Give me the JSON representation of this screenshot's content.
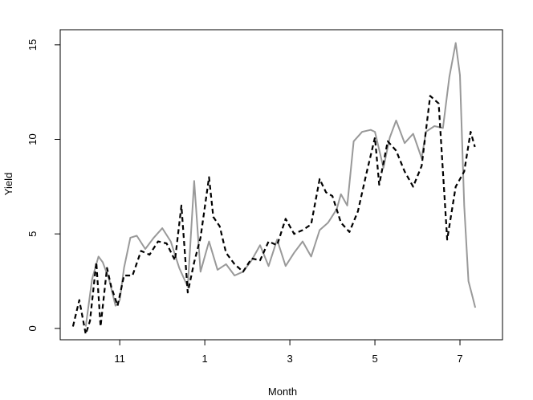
{
  "chart_data": {
    "type": "line",
    "title": "",
    "xlabel": "Month",
    "ylabel": "Yield",
    "x_ticks": [
      {
        "x": 11,
        "label": "11"
      },
      {
        "x": 13,
        "label": "1"
      },
      {
        "x": 15,
        "label": "3"
      },
      {
        "x": 17,
        "label": "5"
      },
      {
        "x": 19,
        "label": "7"
      }
    ],
    "y_ticks": [
      {
        "y": 0,
        "label": "0"
      },
      {
        "y": 5,
        "label": "5"
      },
      {
        "y": 10,
        "label": "10"
      },
      {
        "y": 15,
        "label": "15"
      }
    ],
    "xlim": [
      9.6,
      20.0
    ],
    "ylim": [
      -0.6,
      15.8
    ],
    "grid": false,
    "legend": "none",
    "series": [
      {
        "color": "#999999",
        "line_style": "solid",
        "x": [
          10.2,
          10.35,
          10.5,
          10.6,
          10.75,
          10.9,
          11.0,
          11.1,
          11.25,
          11.4,
          11.6,
          11.8,
          12.0,
          12.2,
          12.4,
          12.6,
          12.75,
          12.9,
          13.1,
          13.3,
          13.5,
          13.7,
          13.9,
          14.1,
          14.3,
          14.5,
          14.7,
          14.9,
          15.1,
          15.3,
          15.5,
          15.7,
          15.9,
          16.1,
          16.2,
          16.35,
          16.5,
          16.7,
          16.9,
          17.0,
          17.2,
          17.35,
          17.5,
          17.7,
          17.9,
          18.1,
          18.2,
          18.4,
          18.6,
          18.75,
          18.9,
          19.0,
          19.1,
          19.2,
          19.28,
          19.36
        ],
        "values": [
          0.1,
          2.6,
          3.8,
          3.5,
          2.6,
          1.2,
          1.5,
          3.2,
          4.8,
          4.9,
          4.2,
          4.8,
          5.3,
          4.6,
          3.2,
          2.2,
          7.8,
          3.0,
          4.6,
          3.1,
          3.4,
          2.8,
          3.0,
          3.6,
          4.4,
          3.3,
          4.7,
          3.3,
          4.0,
          4.6,
          3.8,
          5.2,
          5.6,
          6.3,
          7.1,
          6.5,
          9.9,
          10.4,
          10.5,
          10.4,
          8.5,
          10.1,
          11.0,
          9.8,
          10.3,
          9.0,
          10.4,
          10.7,
          10.6,
          13.3,
          15.1,
          13.4,
          6.5,
          2.5,
          1.8,
          1.1
        ]
      },
      {
        "color": "#000000",
        "line_style": "dashed",
        "x": [
          9.9,
          10.05,
          10.2,
          10.3,
          10.45,
          10.55,
          10.7,
          10.8,
          10.95,
          11.1,
          11.3,
          11.5,
          11.7,
          11.9,
          12.1,
          12.3,
          12.45,
          12.6,
          12.75,
          12.9,
          13.1,
          13.2,
          13.35,
          13.5,
          13.7,
          13.9,
          14.1,
          14.3,
          14.5,
          14.7,
          14.9,
          15.1,
          15.3,
          15.5,
          15.7,
          15.85,
          16.0,
          16.2,
          16.4,
          16.6,
          16.8,
          17.0,
          17.1,
          17.3,
          17.5,
          17.7,
          17.9,
          18.1,
          18.3,
          18.5,
          18.7,
          18.9,
          19.1,
          19.25,
          19.35
        ],
        "values": [
          0.1,
          1.5,
          -0.3,
          0.4,
          3.5,
          0.1,
          3.2,
          2.2,
          1.2,
          2.8,
          2.8,
          4.1,
          3.9,
          4.6,
          4.5,
          3.6,
          6.5,
          1.9,
          3.5,
          4.8,
          8.0,
          5.9,
          5.4,
          4.0,
          3.4,
          3.0,
          3.7,
          3.6,
          4.6,
          4.4,
          5.8,
          5.0,
          5.2,
          5.5,
          7.9,
          7.2,
          7.0,
          5.6,
          5.1,
          6.2,
          8.2,
          10.1,
          7.6,
          9.9,
          9.4,
          8.3,
          7.5,
          8.6,
          12.3,
          11.9,
          4.7,
          7.5,
          8.3,
          10.4,
          9.6
        ]
      }
    ]
  }
}
